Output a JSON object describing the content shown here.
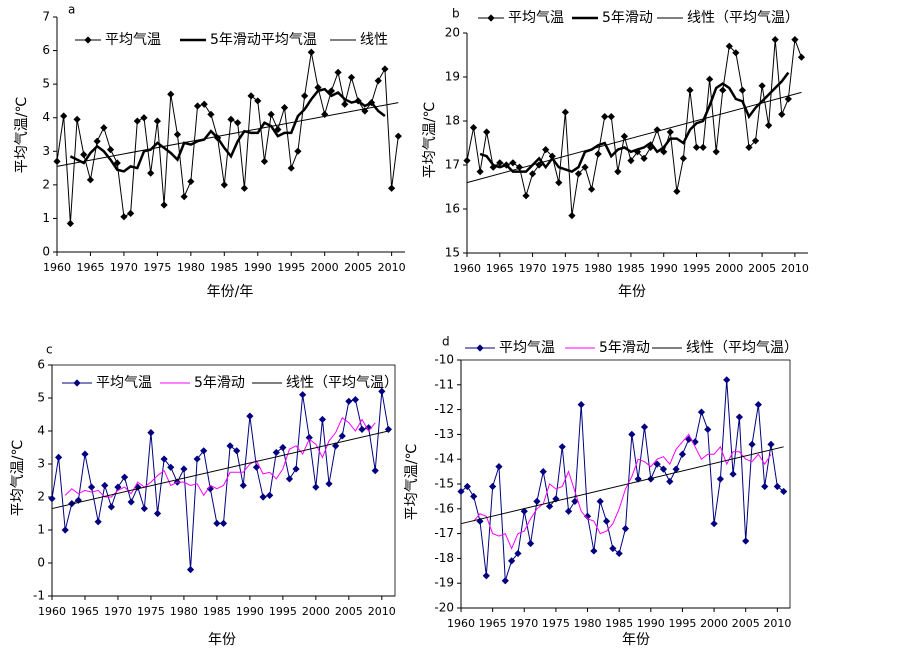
{
  "chart_data": [
    {
      "type": "line",
      "panel": "a",
      "x_label": "年份/年",
      "y_label": "平均气温/℃",
      "x": [
        1960,
        1961,
        1962,
        1963,
        1964,
        1965,
        1966,
        1967,
        1968,
        1969,
        1970,
        1971,
        1972,
        1973,
        1974,
        1975,
        1976,
        1977,
        1978,
        1979,
        1980,
        1981,
        1982,
        1983,
        1984,
        1985,
        1986,
        1987,
        1988,
        1989,
        1990,
        1991,
        1992,
        1993,
        1994,
        1995,
        1996,
        1997,
        1998,
        1999,
        2000,
        2001,
        2002,
        2003,
        2004,
        2005,
        2006,
        2007,
        2008,
        2009,
        2010,
        2011
      ],
      "xlim": [
        1960,
        2012
      ],
      "xticks": [
        1960,
        1965,
        1970,
        1975,
        1980,
        1985,
        1990,
        1995,
        2000,
        2005,
        2010
      ],
      "ylim": [
        0,
        7
      ],
      "yticks": [
        0,
        1,
        2,
        3,
        4,
        5,
        6,
        7
      ],
      "series": [
        {
          "name": "平均气温",
          "color": "#000000",
          "marker": "diamond",
          "width": 1,
          "values": [
            2.7,
            4.05,
            0.85,
            3.95,
            2.9,
            2.15,
            3.3,
            3.7,
            3.05,
            2.65,
            1.05,
            1.15,
            3.9,
            4.0,
            2.35,
            3.9,
            1.4,
            4.7,
            3.5,
            1.65,
            2.1,
            4.35,
            4.4,
            4.1,
            3.4,
            2.0,
            3.95,
            3.85,
            1.9,
            4.65,
            4.5,
            2.7,
            4.1,
            3.65,
            4.3,
            2.5,
            3.0,
            4.65,
            5.95,
            4.9,
            4.1,
            4.8,
            5.35,
            4.4,
            5.2,
            4.5,
            4.2,
            4.45,
            5.1,
            5.45,
            1.9,
            3.45
          ]
        },
        {
          "name": "5年滑动平均气温",
          "color": "#000000",
          "width": 2.5,
          "values": [
            null,
            null,
            2.85,
            2.75,
            2.65,
            2.95,
            3.15,
            3.0,
            2.75,
            2.45,
            2.4,
            2.55,
            2.5,
            3.0,
            3.05,
            3.25,
            3.1,
            2.95,
            2.75,
            3.25,
            3.2,
            3.3,
            3.35,
            3.6,
            3.4,
            3.1,
            2.85,
            3.3,
            3.6,
            3.55,
            3.55,
            3.85,
            3.75,
            3.45,
            3.55,
            3.55,
            4.05,
            4.25,
            4.55,
            4.8,
            4.85,
            4.65,
            4.75,
            4.55,
            4.45,
            4.5,
            4.35,
            4.45,
            4.2,
            4.05,
            null,
            null
          ]
        },
        {
          "name": "线性",
          "color": "#000000",
          "width": 1,
          "x": [
            1960,
            2011
          ],
          "values": [
            2.55,
            4.45
          ]
        }
      ]
    },
    {
      "type": "line",
      "panel": "b",
      "x_label": "年份",
      "y_label": "平均气温/℃",
      "x": [
        1960,
        1961,
        1962,
        1963,
        1964,
        1965,
        1966,
        1967,
        1968,
        1969,
        1970,
        1971,
        1972,
        1973,
        1974,
        1975,
        1976,
        1977,
        1978,
        1979,
        1980,
        1981,
        1982,
        1983,
        1984,
        1985,
        1986,
        1987,
        1988,
        1989,
        1990,
        1991,
        1992,
        1993,
        1994,
        1995,
        1996,
        1997,
        1998,
        1999,
        2000,
        2001,
        2002,
        2003,
        2004,
        2005,
        2006,
        2007,
        2008,
        2009,
        2010,
        2011
      ],
      "xlim": [
        1960,
        2012
      ],
      "xticks": [
        1960,
        1965,
        1970,
        1975,
        1980,
        1985,
        1990,
        1995,
        2000,
        2005,
        2010
      ],
      "ylim": [
        15,
        20
      ],
      "yticks": [
        15,
        16,
        17,
        18,
        19,
        20
      ],
      "series": [
        {
          "name": "平均气温",
          "color": "#000000",
          "marker": "diamond",
          "width": 1,
          "values": [
            17.1,
            17.85,
            16.85,
            17.75,
            16.95,
            17.05,
            17.0,
            17.05,
            16.95,
            16.3,
            16.8,
            17.0,
            17.35,
            17.2,
            16.6,
            18.2,
            15.85,
            16.8,
            16.95,
            16.45,
            17.25,
            18.1,
            18.1,
            16.85,
            17.65,
            17.1,
            17.3,
            17.15,
            17.4,
            17.8,
            17.3,
            17.75,
            16.4,
            17.15,
            18.7,
            17.4,
            17.4,
            18.95,
            17.3,
            18.7,
            19.7,
            19.55,
            18.7,
            17.4,
            17.55,
            18.8,
            17.9,
            19.85,
            18.15,
            18.5,
            19.85,
            19.45
          ]
        },
        {
          "name": "5年滑动",
          "color": "#000000",
          "width": 2.5,
          "values": [
            null,
            null,
            17.25,
            17.2,
            17.0,
            16.95,
            17.0,
            16.85,
            16.85,
            16.85,
            17.0,
            17.15,
            16.95,
            17.15,
            16.95,
            16.9,
            16.85,
            16.95,
            17.3,
            17.35,
            17.45,
            17.5,
            17.2,
            17.35,
            17.4,
            17.3,
            17.35,
            17.4,
            17.5,
            17.3,
            17.4,
            17.6,
            17.6,
            17.5,
            17.8,
            17.95,
            18.0,
            18.35,
            18.75,
            18.85,
            18.75,
            18.5,
            18.45,
            18.1,
            18.3,
            18.45,
            18.6,
            18.75,
            18.9,
            19.1,
            null,
            null
          ]
        },
        {
          "name": "线性（平均气温）",
          "color": "#000000",
          "width": 1,
          "x": [
            1960,
            2011
          ],
          "values": [
            16.6,
            18.65
          ]
        }
      ]
    },
    {
      "type": "line",
      "panel": "c",
      "x_label": "年份",
      "y_label": "平均气温/℃",
      "x": [
        1960,
        1961,
        1962,
        1963,
        1964,
        1965,
        1966,
        1967,
        1968,
        1969,
        1970,
        1971,
        1972,
        1973,
        1974,
        1975,
        1976,
        1977,
        1978,
        1979,
        1980,
        1981,
        1982,
        1983,
        1984,
        1985,
        1986,
        1987,
        1988,
        1989,
        1990,
        1991,
        1992,
        1993,
        1994,
        1995,
        1996,
        1997,
        1998,
        1999,
        2000,
        2001,
        2002,
        2003,
        2004,
        2005,
        2006,
        2007,
        2008,
        2009,
        2010,
        2011
      ],
      "xlim": [
        1960,
        2012
      ],
      "xticks": [
        1960,
        1965,
        1970,
        1975,
        1980,
        1985,
        1990,
        1995,
        2000,
        2005,
        2010
      ],
      "ylim": [
        -1,
        6
      ],
      "yticks": [
        -1,
        0,
        1,
        2,
        3,
        4,
        5,
        6
      ],
      "series": [
        {
          "name": "平均气温",
          "color": "#000080",
          "marker": "diamond",
          "width": 1,
          "values": [
            1.95,
            3.2,
            1.0,
            1.8,
            1.9,
            3.3,
            2.3,
            1.25,
            2.35,
            1.7,
            2.3,
            2.6,
            1.85,
            2.3,
            1.65,
            3.95,
            1.5,
            3.15,
            2.9,
            2.45,
            2.85,
            -0.2,
            3.15,
            3.4,
            2.25,
            1.2,
            1.2,
            3.55,
            3.4,
            2.35,
            4.45,
            2.9,
            2.0,
            2.05,
            3.35,
            3.5,
            2.55,
            2.85,
            5.1,
            3.8,
            2.3,
            4.35,
            2.4,
            3.55,
            3.85,
            4.9,
            4.95,
            4.05,
            4.1,
            2.8,
            5.2,
            4.05
          ]
        },
        {
          "name": "5年滑动",
          "color": "#ff00ff",
          "width": 1,
          "values": [
            null,
            null,
            2.05,
            2.25,
            2.1,
            2.2,
            2.15,
            2.2,
            2.0,
            2.0,
            2.2,
            2.3,
            2.1,
            2.45,
            2.3,
            2.45,
            2.65,
            2.8,
            2.35,
            2.45,
            2.45,
            2.35,
            2.4,
            2.05,
            2.35,
            2.25,
            2.35,
            2.75,
            2.75,
            2.75,
            3.0,
            3.1,
            2.7,
            2.75,
            2.55,
            2.85,
            3.45,
            3.55,
            3.3,
            3.75,
            3.6,
            3.2,
            3.7,
            3.95,
            4.4,
            4.25,
            4.0,
            4.35,
            4.0,
            4.25,
            null,
            null
          ]
        },
        {
          "name": "线性（平均气温）",
          "color": "#000000",
          "width": 1,
          "x": [
            1960,
            2011
          ],
          "values": [
            1.65,
            4.0
          ]
        }
      ]
    },
    {
      "type": "line",
      "panel": "d",
      "x_label": "年份",
      "y_label": "平均气温/℃",
      "x": [
        1960,
        1961,
        1962,
        1963,
        1964,
        1965,
        1966,
        1967,
        1968,
        1969,
        1970,
        1971,
        1972,
        1973,
        1974,
        1975,
        1976,
        1977,
        1978,
        1979,
        1980,
        1981,
        1982,
        1983,
        1984,
        1985,
        1986,
        1987,
        1988,
        1989,
        1990,
        1991,
        1992,
        1993,
        1994,
        1995,
        1996,
        1997,
        1998,
        1999,
        2000,
        2001,
        2002,
        2003,
        2004,
        2005,
        2006,
        2007,
        2008,
        2009,
        2010,
        2011
      ],
      "xlim": [
        1960,
        2012
      ],
      "xticks": [
        1960,
        1965,
        1970,
        1975,
        1980,
        1985,
        1990,
        1995,
        2000,
        2005,
        2010
      ],
      "ylim": [
        -20,
        -10
      ],
      "yticks": [
        -20,
        -19,
        -18,
        -17,
        -16,
        -15,
        -14,
        -13,
        -12,
        -11,
        -10
      ],
      "series": [
        {
          "name": "平均气温",
          "color": "#000080",
          "marker": "diamond",
          "width": 1,
          "values": [
            -15.3,
            -15.1,
            -15.5,
            -16.5,
            -18.7,
            -15.1,
            -14.3,
            -18.9,
            -18.1,
            -17.8,
            -16.1,
            -17.4,
            -15.7,
            -14.5,
            -15.9,
            -15.6,
            -13.5,
            -16.1,
            -15.7,
            -11.8,
            -16.3,
            -17.7,
            -15.7,
            -16.5,
            -17.6,
            -17.8,
            -16.8,
            -13.0,
            -14.8,
            -12.7,
            -14.8,
            -14.2,
            -14.4,
            -14.9,
            -14.4,
            -13.8,
            -13.2,
            -13.3,
            -12.1,
            -12.8,
            -16.6,
            -14.8,
            -10.8,
            -14.6,
            -12.3,
            -17.3,
            -13.4,
            -11.8,
            -15.1,
            -13.4,
            -15.1,
            -15.3
          ]
        },
        {
          "name": "5年滑动",
          "color": "#ff00ff",
          "width": 1,
          "values": [
            null,
            null,
            -16.5,
            -16.2,
            -16.3,
            -17.0,
            -17.1,
            -17.0,
            -17.6,
            -17.0,
            -16.9,
            -16.4,
            -16.0,
            -15.8,
            -15.0,
            -15.2,
            -15.1,
            -14.5,
            -15.3,
            -16.1,
            -16.4,
            -16.5,
            -17.0,
            -16.9,
            -16.6,
            -16.0,
            -15.2,
            -14.7,
            -14.0,
            -14.1,
            -14.3,
            -14.0,
            -13.9,
            -14.2,
            -13.6,
            -13.3,
            -13.0,
            -13.5,
            -14.0,
            -13.8,
            -13.8,
            -13.5,
            -14.2,
            -13.7,
            -13.7,
            -14.0,
            -14.1,
            -13.8,
            -14.2,
            -13.8,
            null,
            null
          ]
        },
        {
          "name": "线性（平均气温）",
          "color": "#000000",
          "width": 1,
          "x": [
            1960,
            2011
          ],
          "values": [
            -16.6,
            -13.5
          ]
        }
      ]
    }
  ]
}
